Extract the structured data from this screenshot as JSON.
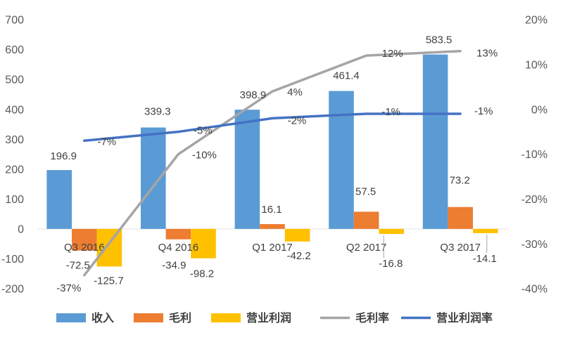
{
  "chart_data": {
    "type": "bar",
    "categories": [
      "Q3 2016",
      "Q4 2016",
      "Q1 2017",
      "Q2 2017",
      "Q3 2017"
    ],
    "series": [
      {
        "name": "收入",
        "type": "bar",
        "axis": "left",
        "color": "#5B9BD5",
        "values": [
          196.9,
          339.3,
          398.9,
          461.4,
          583.5
        ]
      },
      {
        "name": "毛利",
        "type": "bar",
        "axis": "left",
        "color": "#ED7D31",
        "values": [
          -72.5,
          -34.9,
          16.1,
          57.5,
          73.2
        ]
      },
      {
        "name": "营业利润",
        "type": "bar",
        "axis": "left",
        "color": "#FFC000",
        "values": [
          -125.7,
          -98.2,
          -42.2,
          -16.8,
          -14.1
        ]
      },
      {
        "name": "毛利率",
        "type": "line",
        "axis": "right",
        "color": "#A5A5A5",
        "unit": "%",
        "values": [
          -37,
          -10,
          4,
          12,
          13
        ]
      },
      {
        "name": "营业利润率",
        "type": "line",
        "axis": "right",
        "color": "#4472C4",
        "unit": "%",
        "values": [
          -7,
          -5,
          -2,
          -1,
          -1
        ]
      }
    ],
    "y_left": {
      "range": [
        -200,
        700
      ],
      "ticks": [
        700,
        600,
        500,
        400,
        300,
        200,
        100,
        0,
        -100,
        -200
      ]
    },
    "y_right": {
      "range": [
        -40,
        20
      ],
      "unit": "%",
      "ticks": [
        20,
        10,
        0,
        -10,
        -20,
        -30,
        -40
      ]
    },
    "data_labels": true,
    "grid": false,
    "legend": "bottom"
  }
}
